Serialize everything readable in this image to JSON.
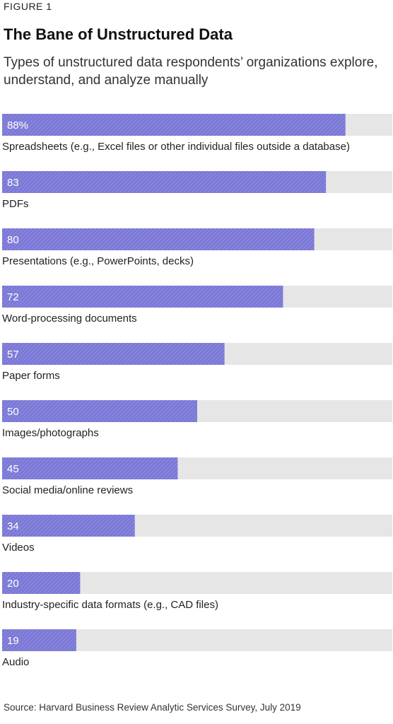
{
  "figure_label": "FIGURE 1",
  "chart_data": {
    "type": "bar",
    "orientation": "horizontal",
    "title": "The Bane of Unstructured Data",
    "subtitle": "Types of unstructured data respondents’ organizations explore, understand, and analyze manually",
    "categories": [
      "Spreadsheets (e.g., Excel files or other individual files outside a database)",
      "PDFs",
      "Presentations (e.g., PowerPoints, decks)",
      "Word-processing documents",
      "Paper forms",
      "Images/photographs",
      "Social media/online reviews",
      "Videos",
      "Industry-specific data formats (e.g., CAD files)",
      "Audio"
    ],
    "values": [
      88,
      83,
      80,
      72,
      57,
      50,
      45,
      34,
      20,
      19
    ],
    "value_labels": [
      "88%",
      "83",
      "80",
      "72",
      "57",
      "50",
      "45",
      "34",
      "20",
      "19"
    ],
    "xlim": [
      0,
      100
    ],
    "bar_color": "#7b78d6",
    "track_color": "#e6e6e6",
    "source": "Source: Harvard Business Review Analytic Services Survey, July 2019"
  }
}
